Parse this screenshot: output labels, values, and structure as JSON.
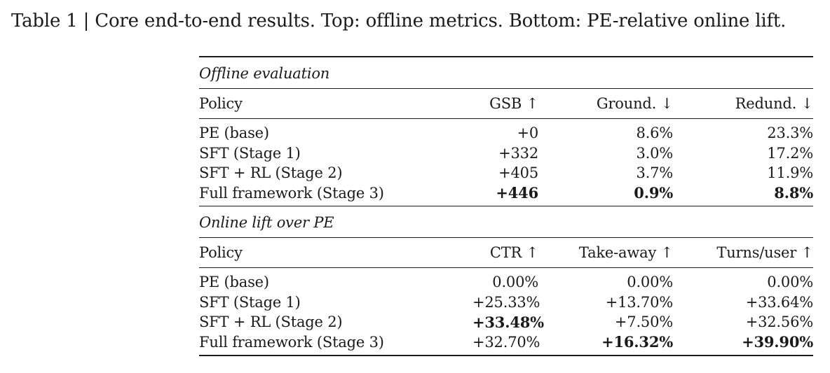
{
  "caption": "Table 1 | Core end-to-end results. Top: offline metrics. Bottom: PE-relative online lift.",
  "offline": {
    "section_title": "Offline evaluation",
    "headers": [
      "Policy",
      "GSB ↑",
      "Ground. ↓",
      "Redund. ↓"
    ],
    "rows": [
      {
        "policy": "PE (base)",
        "gsb": "+0",
        "ground": "8.6%",
        "redund": "23.3%"
      },
      {
        "policy": "SFT (Stage 1)",
        "gsb": "+332",
        "ground": "3.0%",
        "redund": "17.2%"
      },
      {
        "policy": "SFT + RL (Stage 2)",
        "gsb": "+405",
        "ground": "3.7%",
        "redund": "11.9%"
      },
      {
        "policy": "Full framework (Stage 3)",
        "gsb": "+446",
        "ground": "0.9%",
        "redund": "8.8%"
      }
    ]
  },
  "online": {
    "section_title": "Online lift over PE",
    "headers": [
      "Policy",
      "CTR ↑",
      "Take-away ↑",
      "Turns/user ↑"
    ],
    "rows": [
      {
        "policy": "PE (base)",
        "ctr": "0.00%",
        "takeaway": "0.00%",
        "turns": "0.00%"
      },
      {
        "policy": "SFT (Stage 1)",
        "ctr": "+25.33%",
        "takeaway": "+13.70%",
        "turns": "+33.64%"
      },
      {
        "policy": "SFT + RL (Stage 2)",
        "ctr": "+33.48%",
        "takeaway": "+7.50%",
        "turns": "+32.56%"
      },
      {
        "policy": "Full framework (Stage 3)",
        "ctr": "+32.70%",
        "takeaway": "+16.32%",
        "turns": "+39.90%"
      }
    ]
  }
}
